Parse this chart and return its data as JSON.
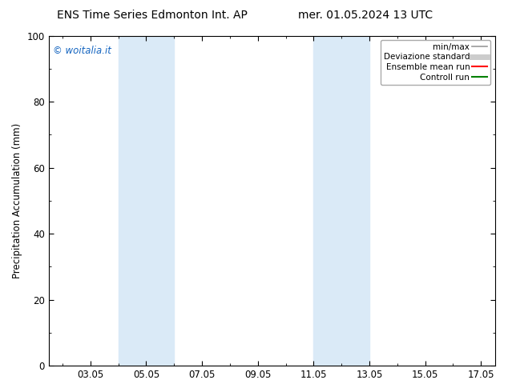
{
  "title_left": "ENS Time Series Edmonton Int. AP",
  "title_right": "mer. 01.05.2024 13 UTC",
  "ylabel": "Precipitation Accumulation (mm)",
  "ylim": [
    0,
    100
  ],
  "yticks": [
    0,
    20,
    40,
    60,
    80,
    100
  ],
  "xlim": [
    1.5,
    17.5
  ],
  "xtick_labels": [
    "03.05",
    "05.05",
    "07.05",
    "09.05",
    "11.05",
    "13.05",
    "15.05",
    "17.05"
  ],
  "xtick_positions": [
    3,
    5,
    7,
    9,
    11,
    13,
    15,
    17
  ],
  "minor_xtick_positions": [
    2,
    3,
    4,
    5,
    6,
    7,
    8,
    9,
    10,
    11,
    12,
    13,
    14,
    15,
    16,
    17
  ],
  "shaded_bands": [
    {
      "x_start_day": 4.0,
      "x_end_day": 6.0
    },
    {
      "x_start_day": 11.0,
      "x_end_day": 13.0
    }
  ],
  "band_color": "#daeaf7",
  "watermark_text": "© woitalia.it",
  "watermark_color": "#1565C0",
  "legend_items": [
    {
      "label": "min/max",
      "color": "#999999",
      "lw": 1.2,
      "style": "solid"
    },
    {
      "label": "Deviazione standard",
      "color": "#cccccc",
      "lw": 5,
      "style": "solid"
    },
    {
      "label": "Ensemble mean run",
      "color": "red",
      "lw": 1.5,
      "style": "solid"
    },
    {
      "label": "Controll run",
      "color": "green",
      "lw": 1.5,
      "style": "solid"
    }
  ],
  "bg_color": "#ffffff",
  "title_fontsize": 10,
  "axis_label_fontsize": 8.5,
  "tick_fontsize": 8.5,
  "watermark_fontsize": 8.5,
  "legend_fontsize": 7.5
}
